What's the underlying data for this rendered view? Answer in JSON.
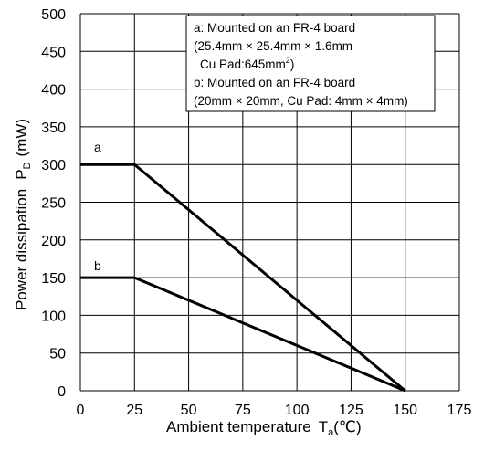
{
  "chart_data": {
    "type": "line",
    "xlabel": "Ambient temperature",
    "xlabel_symbol": "T",
    "xlabel_subscript": "a",
    "xlabel_unit": "(℃)",
    "ylabel": "Power dissipation",
    "ylabel_symbol": "P",
    "ylabel_subscript": "D",
    "ylabel_unit": "(mW)",
    "xlim": [
      0,
      175
    ],
    "ylim": [
      0,
      500
    ],
    "xticks": [
      0,
      25,
      50,
      75,
      100,
      125,
      150,
      175
    ],
    "yticks": [
      0,
      50,
      100,
      150,
      200,
      250,
      300,
      350,
      400,
      450,
      500
    ],
    "grid": true,
    "legend_position": "top-right",
    "series": [
      {
        "name": "a",
        "x": [
          0,
          25,
          150
        ],
        "y": [
          300,
          300,
          0
        ]
      },
      {
        "name": "b",
        "x": [
          0,
          25,
          150
        ],
        "y": [
          150,
          150,
          0
        ]
      }
    ],
    "legend_lines": [
      "a: Mounted on an FR-4 board",
      "(25.4mm × 25.4mm × 1.6mm",
      "Cu Pad:645mm",
      "b: Mounted on an FR-4 board",
      "(20mm × 20mm, Cu Pad: 4mm × 4mm)"
    ],
    "legend_superscript": "2",
    "legend_close": ")"
  }
}
